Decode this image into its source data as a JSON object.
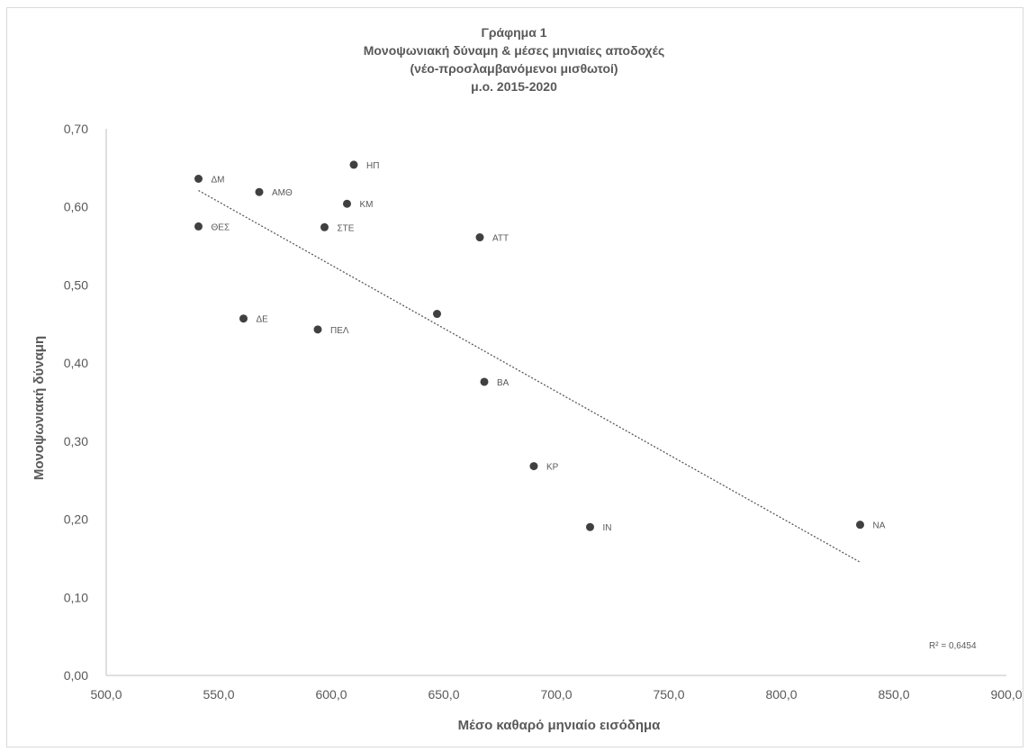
{
  "chart_data": {
    "type": "scatter",
    "title_lines": [
      "Γράφημα 1",
      "Μονοψωνιακή δύναμη & μέσες μηνιαίες αποδοχές",
      "(νέο-προσλαμβανόμενοι μισθωτοί)",
      "μ.ο. 2015-2020"
    ],
    "xlabel": "Μέσο καθαρό μηνιαίο εισόδημα",
    "ylabel": "Μονοψωνιακή δύναμη",
    "xlim": [
      500,
      900
    ],
    "ylim": [
      0,
      0.7
    ],
    "x_ticks": [
      "500,0",
      "550,0",
      "600,0",
      "650,0",
      "700,0",
      "750,0",
      "800,0",
      "850,0",
      "900,0"
    ],
    "y_ticks": [
      "0,00",
      "0,10",
      "0,20",
      "0,30",
      "0,40",
      "0,50",
      "0,60",
      "0,70"
    ],
    "grid": false,
    "marker_color": "#404040",
    "trendline_color": "#595959",
    "points": [
      {
        "label": "ΔΜ",
        "x": 541,
        "y": 0.636
      },
      {
        "label": "ΑΜΘ",
        "x": 568,
        "y": 0.619
      },
      {
        "label": "ΗΠ",
        "x": 610,
        "y": 0.654
      },
      {
        "label": "ΚΜ",
        "x": 607,
        "y": 0.604
      },
      {
        "label": "ΘΕΣ",
        "x": 541,
        "y": 0.575
      },
      {
        "label": "ΣΤΕ",
        "x": 597,
        "y": 0.574
      },
      {
        "label": "ΑΤΤ",
        "x": 666,
        "y": 0.561
      },
      {
        "label": "ΔΕ",
        "x": 561,
        "y": 0.457
      },
      {
        "label": "ΠΕΛ",
        "x": 594,
        "y": 0.443
      },
      {
        "label": "",
        "x": 647,
        "y": 0.463
      },
      {
        "label": "ΒΑ",
        "x": 668,
        "y": 0.376
      },
      {
        "label": "ΚΡ",
        "x": 690,
        "y": 0.268
      },
      {
        "label": "ΙΝ",
        "x": 715,
        "y": 0.19
      },
      {
        "label": "ΝΑ",
        "x": 835,
        "y": 0.193
      }
    ],
    "trendline": {
      "type": "linear",
      "x": [
        541,
        835
      ],
      "y": [
        0.621,
        0.145
      ]
    },
    "r_squared_text": "R² = 0,6454"
  }
}
